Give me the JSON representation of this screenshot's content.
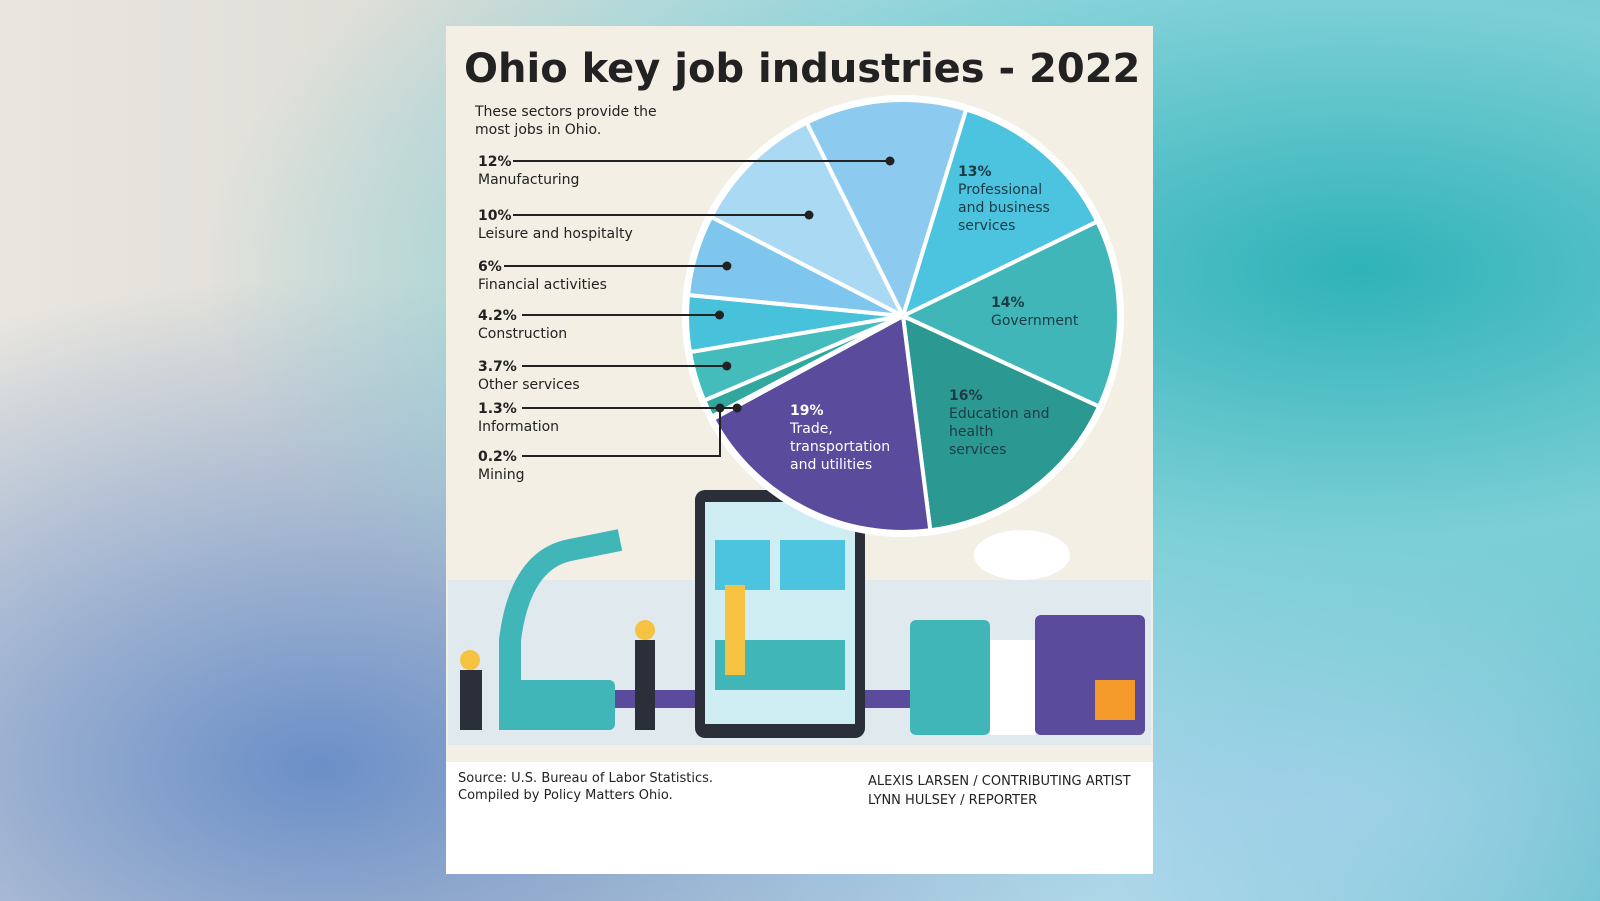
{
  "chart_data": {
    "type": "pie",
    "title": "Ohio key job industries - 2022",
    "subtitle": [
      "These sectors provide the",
      "most jobs in Ohio."
    ],
    "categories": [
      "Professional and business services",
      "Government",
      "Education and health services",
      "Trade, transportation and utilities",
      "Mining",
      "Information",
      "Other services",
      "Construction",
      "Financial activities",
      "Leisure and hospitalty",
      "Manufacturing"
    ],
    "values": [
      13,
      14,
      16,
      19,
      0.2,
      1.3,
      3.7,
      4.2,
      6,
      10,
      12
    ],
    "value_labels": [
      "13%",
      "14%",
      "16%",
      "19%",
      "0.2%",
      "1.3%",
      "3.7%",
      "4.2%",
      "6%",
      "10%",
      "12%"
    ],
    "colors": [
      "#4cc3df",
      "#41b6b8",
      "#2b9891",
      "#5a4b9c",
      "#2a968f",
      "#30a89e",
      "#43bcbb",
      "#48c1da",
      "#7fc6ee",
      "#a9d9f3",
      "#8ccaf0"
    ],
    "source": [
      "Source:  U.S. Bureau of Labor Statistics.",
      "Compiled by Policy Matters Ohio."
    ],
    "credits": [
      "ALEXIS LARSEN / CONTRIBUTING ARTIST",
      "LYNN HULSEY / REPORTER"
    ]
  }
}
